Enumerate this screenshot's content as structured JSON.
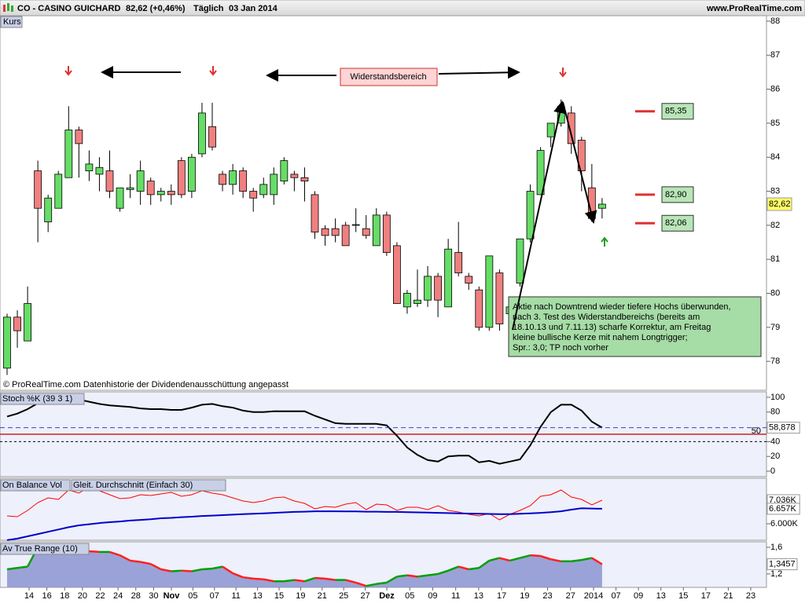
{
  "header": {
    "title": "CO - CASINO GUICHARD",
    "quote": "82,62 (+0,46%)",
    "period": "Täglich",
    "date": "03 Jan 2014",
    "site": "www.ProRealTime.com"
  },
  "x_axis": {
    "labels": [
      "14",
      "16",
      "18",
      "20",
      "22",
      "24",
      "28",
      "30",
      "Nov",
      "05",
      "07",
      "11",
      "13",
      "15",
      "19",
      "21",
      "25",
      "27",
      "Dez",
      "05",
      "09",
      "11",
      "13",
      "17",
      "19",
      "23",
      "27",
      "2014",
      "07",
      "09",
      "13",
      "15",
      "17",
      "21",
      "23"
    ]
  },
  "chart_data": [
    {
      "type": "candlestick",
      "title": "Kurs",
      "open": [
        77.8,
        79.3,
        78.6,
        83.6,
        82.1,
        82.5,
        83.4,
        84.8,
        83.6,
        83.5,
        83.6,
        82.5,
        83.05,
        83.0,
        83.3,
        82.9,
        83.0,
        83.9,
        83.0,
        84.1,
        84.9,
        83.5,
        83.2,
        83.6,
        83.0,
        82.9,
        82.9,
        83.3,
        83.5,
        83.4,
        82.9,
        81.9,
        81.9,
        82.0,
        82.0,
        81.9,
        81.4,
        82.3,
        81.4,
        79.6,
        79.7,
        79.8,
        80.5,
        79.6,
        81.2,
        80.5,
        80.1,
        79.0,
        80.6,
        79.4,
        80.3,
        81.6,
        82.9,
        84.6,
        85.0,
        85.3,
        84.5,
        83.1,
        82.5
      ],
      "high": [
        79.4,
        79.5,
        80.2,
        83.9,
        82.9,
        83.6,
        85.5,
        84.9,
        84.2,
        84.0,
        84.2,
        83.1,
        83.5,
        83.9,
        83.4,
        83.1,
        83.2,
        84.0,
        84.1,
        85.6,
        85.6,
        83.6,
        83.8,
        83.7,
        83.1,
        83.4,
        83.7,
        84.0,
        83.6,
        83.7,
        83.0,
        82.0,
        82.2,
        82.1,
        82.5,
        82.3,
        82.5,
        82.4,
        81.5,
        80.1,
        80.7,
        80.8,
        80.6,
        81.6,
        82.1,
        80.6,
        80.2,
        81.1,
        80.7,
        79.7,
        81.6,
        83.2,
        84.3,
        85.0,
        85.7,
        85.5,
        84.6,
        83.8,
        82.8
      ],
      "low": [
        77.6,
        78.4,
        78.6,
        81.5,
        81.8,
        82.5,
        83.4,
        83.4,
        83.3,
        83.0,
        82.8,
        82.4,
        82.8,
        82.6,
        82.6,
        82.7,
        82.6,
        82.8,
        82.8,
        84.0,
        84.2,
        83.0,
        82.9,
        82.8,
        82.4,
        82.8,
        82.6,
        83.2,
        83.0,
        82.7,
        81.6,
        81.4,
        81.5,
        81.4,
        81.8,
        81.6,
        81.4,
        81.1,
        79.7,
        79.4,
        79.6,
        79.6,
        79.3,
        79.6,
        80.5,
        80.1,
        78.9,
        78.9,
        78.9,
        79.3,
        80.2,
        81.5,
        82.9,
        84.3,
        84.9,
        84.1,
        83.0,
        82.1,
        82.2
      ],
      "close": [
        79.3,
        78.9,
        79.7,
        82.5,
        82.8,
        83.5,
        84.8,
        84.4,
        83.8,
        83.7,
        83.0,
        83.1,
        83.1,
        83.6,
        82.9,
        83.0,
        82.9,
        82.9,
        84.0,
        85.3,
        84.3,
        83.2,
        83.6,
        83.0,
        82.8,
        83.2,
        83.5,
        83.9,
        83.4,
        83.3,
        81.8,
        81.7,
        81.7,
        81.4,
        82.02,
        81.7,
        82.3,
        81.2,
        79.7,
        80.0,
        79.8,
        80.5,
        79.8,
        81.3,
        80.6,
        80.3,
        79.0,
        81.1,
        79.1,
        79.6,
        81.6,
        83.0,
        84.2,
        85.0,
        85.5,
        84.4,
        83.6,
        82.2,
        82.62
      ],
      "up_color": "#66dd66",
      "down_color": "#f08080",
      "ylim": [
        77.15,
        88.16
      ],
      "yticks": [
        78,
        79,
        80,
        81,
        82,
        83,
        84,
        85,
        86,
        87,
        88
      ],
      "last_label": "82,62",
      "levels": [
        {
          "value": 85.35,
          "label": "85,35"
        },
        {
          "value": 82.9,
          "label": "82,90"
        },
        {
          "value": 82.06,
          "label": "82,06"
        }
      ],
      "level_color": "#e03030",
      "annotation": "Widerstandsbereich",
      "note": [
        "Aktie nach Downtrend wieder tiefere Hochs überwunden,",
        "nach 3. Test des Widerstandbereichs (bereits am",
        "18.10.13 und 7.11.13) scharfe Korrektur, am Freitag",
        "kleine bullische Kerze mit nahem Longtrigger;",
        "Spr.: 3,0; TP noch vorher"
      ],
      "credit": "© ProRealTime.com Datenhistorie der Dividendenausschüttung angepasst"
    },
    {
      "type": "line",
      "ylim": [
        -7.4,
        107.4
      ],
      "yticks": [
        0,
        20,
        40,
        80,
        100
      ],
      "levels": [
        {
          "value": 50,
          "label": "50",
          "color": "#d02020"
        }
      ],
      "dashed_levels": [
        40
      ],
      "series": [
        {
          "name": "Stoch %K (39 3 1)",
          "color": "#000000",
          "width": 2,
          "last_label": "58,878",
          "values": [
            74,
            78,
            84,
            92,
            93,
            96,
            98,
            97,
            94,
            91,
            89,
            88,
            87,
            85,
            84,
            84,
            83,
            83,
            86,
            90,
            91,
            88,
            86,
            82,
            80,
            80,
            81,
            81,
            81,
            81,
            75,
            70,
            65,
            64,
            64,
            64,
            64,
            62,
            48,
            32,
            22,
            15,
            13,
            20,
            21,
            21,
            12,
            14,
            10,
            13,
            16,
            35,
            60,
            80,
            90,
            90,
            82,
            67,
            58.878
          ]
        }
      ]
    },
    {
      "type": "line",
      "ylim": [
        5276000,
        8000000
      ],
      "yticks": [
        {
          "value": 6000000,
          "label": "6.000K"
        }
      ],
      "series": [
        {
          "name": "On Balance Vol",
          "color": "#ff0000",
          "width": 1,
          "last_label": "7.036K",
          "values": [
            6345000,
            6310000,
            6586000,
            6931000,
            7138000,
            7069000,
            7483000,
            7345000,
            7621000,
            7448000,
            7276000,
            7103000,
            7138000,
            7276000,
            7241000,
            7310000,
            7379000,
            7207000,
            7276000,
            7448000,
            7345000,
            7276000,
            7138000,
            7000000,
            6931000,
            7000000,
            7138000,
            7172000,
            7000000,
            6897000,
            6655000,
            6759000,
            6724000,
            6862000,
            6931000,
            6621000,
            6862000,
            6828000,
            6586000,
            6724000,
            6724000,
            6621000,
            6793000,
            6586000,
            6517000,
            6414000,
            6345000,
            6448000,
            6172000,
            6414000,
            6586000,
            6793000,
            7207000,
            7276000,
            7483000,
            7172000,
            7069000,
            6828000,
            7036000
          ]
        },
        {
          "name": "Gleit. Durchschnitt (Einfach 30)",
          "color": "#0000cc",
          "width": 2,
          "last_label": "6.657K",
          "values": [
            5280000,
            5350000,
            5450000,
            5550000,
            5650000,
            5750000,
            5850000,
            5930000,
            5980000,
            6030000,
            6070000,
            6100000,
            6140000,
            6170000,
            6200000,
            6240000,
            6260000,
            6290000,
            6310000,
            6340000,
            6360000,
            6380000,
            6400000,
            6420000,
            6440000,
            6460000,
            6480000,
            6500000,
            6520000,
            6530000,
            6550000,
            6550000,
            6550000,
            6540000,
            6540000,
            6530000,
            6530000,
            6520000,
            6520000,
            6510000,
            6500000,
            6490000,
            6480000,
            6470000,
            6460000,
            6450000,
            6440000,
            6430000,
            6420000,
            6420000,
            6440000,
            6460000,
            6480000,
            6510000,
            6550000,
            6620000,
            6680000,
            6670000,
            6657000
          ]
        }
      ]
    },
    {
      "type": "area",
      "ylim": [
        0.999,
        1.682
      ],
      "yticks": [
        {
          "value": 1.2,
          "label": "1,2"
        },
        {
          "value": 1.6,
          "label": "1,6"
        }
      ],
      "series": [
        {
          "name": "Av True Range (10)",
          "up_color": "#00a000",
          "down_color": "#ff2020",
          "fill": "#8c94d0",
          "last_label": "1,3457",
          "values": [
            1.27,
            1.29,
            1.31,
            1.6,
            1.59,
            1.56,
            1.6,
            1.56,
            1.54,
            1.53,
            1.53,
            1.48,
            1.4,
            1.38,
            1.35,
            1.27,
            1.24,
            1.25,
            1.24,
            1.27,
            1.28,
            1.31,
            1.21,
            1.15,
            1.13,
            1.12,
            1.09,
            1.09,
            1.11,
            1.09,
            1.14,
            1.13,
            1.11,
            1.11,
            1.07,
            1.02,
            1.05,
            1.07,
            1.16,
            1.18,
            1.16,
            1.18,
            1.2,
            1.25,
            1.31,
            1.27,
            1.29,
            1.4,
            1.44,
            1.4,
            1.44,
            1.48,
            1.47,
            1.42,
            1.39,
            1.39,
            1.41,
            1.44,
            1.3457
          ]
        }
      ]
    }
  ]
}
